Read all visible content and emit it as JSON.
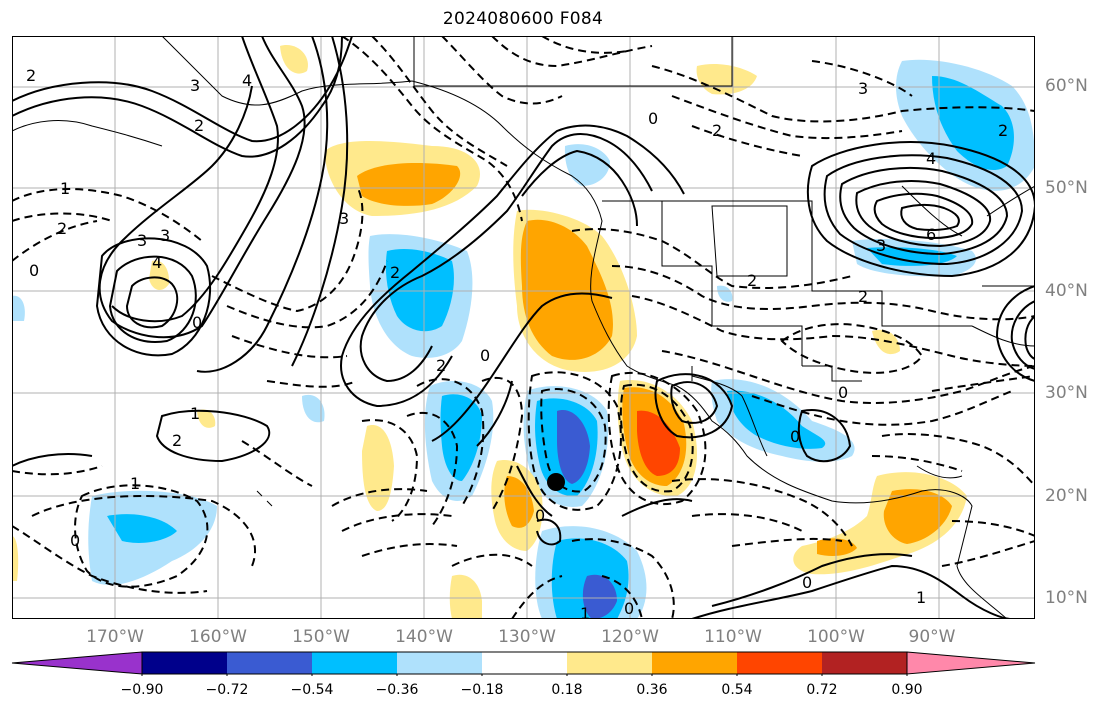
{
  "title": "2024080600 F084",
  "lat_labels": [
    "60°N",
    "50°N",
    "40°N",
    "30°N",
    "20°N",
    "10°N"
  ],
  "lon_labels": [
    "170°W",
    "160°W",
    "150°W",
    "140°W",
    "130°W",
    "120°W",
    "110°W",
    "100°W",
    "90°W"
  ],
  "colorbar": {
    "ticks": [
      "−0.90",
      "−0.72",
      "−0.54",
      "−0.36",
      "−0.18",
      "0.18",
      "0.36",
      "0.54",
      "0.72",
      "0.90"
    ],
    "colors": [
      "#9932cc",
      "#00008b",
      "#3a5bd2",
      "#00bfff",
      "#afe1fc",
      "#ffffff",
      "#ffe98c",
      "#ffa500",
      "#ff4500",
      "#b22222",
      "#ff88aa"
    ]
  },
  "contour_labels": [
    "2",
    "1",
    "2",
    "3",
    "3",
    "0",
    "4",
    "2",
    "1",
    "2",
    "3",
    "4",
    "0",
    "3",
    "2",
    "2",
    "0",
    "0",
    "1",
    "0",
    "1",
    "0",
    "0",
    "0",
    "2",
    "0",
    "2",
    "3",
    "4",
    "6",
    "3",
    "2",
    "2",
    "0",
    "1"
  ],
  "marker": {
    "name": "storm-center",
    "lat": 21.5,
    "lon": -125.5
  }
}
